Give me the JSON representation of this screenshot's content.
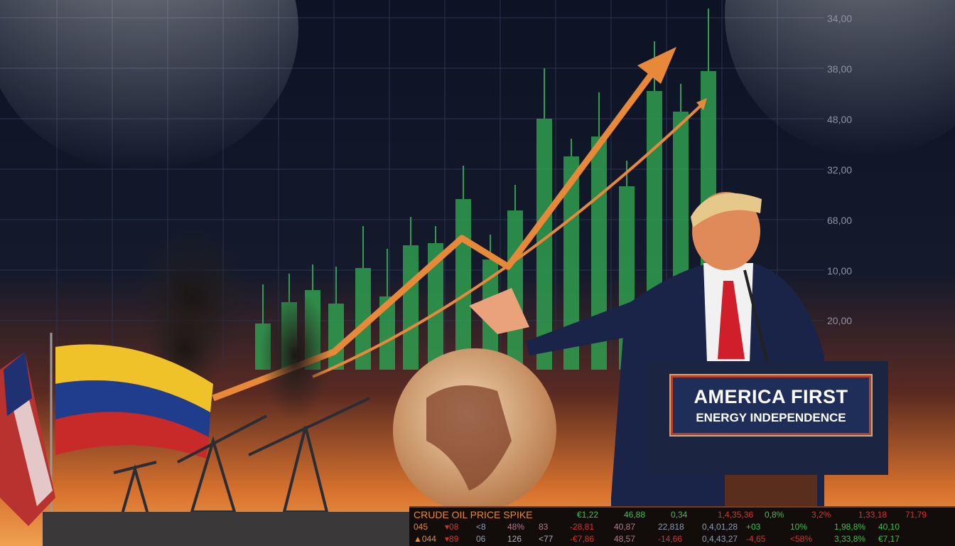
{
  "axis_labels": [
    "34,00",
    "38,00",
    "48,00",
    "32,00",
    "68,00",
    "10,00",
    "20,00"
  ],
  "podium_sign": {
    "line1": "AMERICA FIRST",
    "line2": "ENERGY INDEPENDENCE"
  },
  "ticker": {
    "rows": [
      [
        {
          "t": "CRUDE OIL PRICE SPIKE",
          "c": "#e5882e"
        },
        {
          "t": "€1,22",
          "c": "#3fbf4a"
        },
        {
          "t": "46,88",
          "c": "#3fbf4a"
        },
        {
          "t": "0,34",
          "c": "#3fbf4a"
        },
        {
          "t": "1,4,35,36",
          "c": "#d6322a"
        },
        {
          "t": "0,8%",
          "c": "#3fbf4a"
        },
        {
          "t": "3,2%",
          "c": "#d6322a"
        },
        {
          "t": "1,33,18",
          "c": "#d6322a"
        },
        {
          "t": "71,79",
          "c": "#d6322a"
        }
      ],
      [
        {
          "t": "045",
          "c": "#e5882e"
        },
        {
          "t": "▾08",
          "c": "#d6322a"
        },
        {
          "t": "<8",
          "c": "#8b9bb5"
        },
        {
          "t": "48%",
          "c": "#b07a90"
        },
        {
          "t": "83",
          "c": "#b07a90"
        },
        {
          "t": "-28,81",
          "c": "#d6322a"
        },
        {
          "t": "40,87",
          "c": "#b07a90"
        },
        {
          "t": "22,818",
          "c": "#8b9bb5"
        },
        {
          "t": "0,4,01,28",
          "c": "#8b9bb5"
        },
        {
          "t": "+03",
          "c": "#3fbf4a"
        },
        {
          "t": "10%",
          "c": "#3fbf4a"
        },
        {
          "t": "1,98,8%",
          "c": "#3fbf4a"
        },
        {
          "t": "40,10",
          "c": "#3fbf4a"
        }
      ],
      [
        {
          "t": "▲044",
          "c": "#e5882e"
        },
        {
          "t": "▾89",
          "c": "#d6322a"
        },
        {
          "t": "06",
          "c": "#8b9bb5"
        },
        {
          "t": "126",
          "c": "#b0a8b8"
        },
        {
          "t": "<77",
          "c": "#b0a8b8"
        },
        {
          "t": "-€7,86",
          "c": "#d6322a"
        },
        {
          "t": "48,57",
          "c": "#b07a90"
        },
        {
          "t": "-14,66",
          "c": "#d6322a"
        },
        {
          "t": "0,4,43,27",
          "c": "#8b9bb5"
        },
        {
          "t": "-4,65",
          "c": "#d6322a"
        },
        {
          "t": "<58%",
          "c": "#d6322a"
        },
        {
          "t": "3,33,8%",
          "c": "#3fbf4a"
        },
        {
          "t": "€7,17",
          "c": "#3fbf4a"
        }
      ]
    ]
  },
  "colors": {
    "background": "#0d1426",
    "candle_green": "#2f9e4f",
    "arrow_orange": "#e8893a",
    "horizon_orange": "#c65a28",
    "podium_navy": "#1f2e58"
  }
}
